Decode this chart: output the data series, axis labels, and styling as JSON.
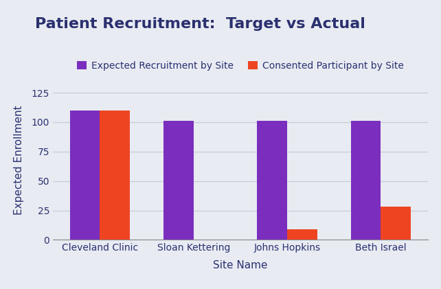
{
  "title": "Patient Recruitment:  Target vs Actual",
  "xlabel": "Site Name",
  "ylabel": "Expected Enrollment",
  "categories": [
    "Cleveland Clinic",
    "Sloan Kettering",
    "Johns Hopkins",
    "Beth Israel"
  ],
  "expected": [
    110,
    101,
    101,
    101
  ],
  "consented": [
    110,
    0,
    9,
    28
  ],
  "expected_color": "#7B2DBE",
  "consented_color": "#EE4422",
  "background_color": "#E8EBF2",
  "plot_background_color": "#E8EBF2",
  "grid_color": "#C8CCDA",
  "title_color": "#2B3070",
  "label_color": "#2B3070",
  "legend_labels": [
    "Expected Recruitment by Site",
    "Consented Participant by Site"
  ],
  "ylim": [
    0,
    135
  ],
  "yticks": [
    0,
    25,
    50,
    75,
    100,
    125
  ],
  "bar_width": 0.32,
  "title_fontsize": 16,
  "axis_label_fontsize": 11,
  "tick_fontsize": 10,
  "legend_fontsize": 10
}
